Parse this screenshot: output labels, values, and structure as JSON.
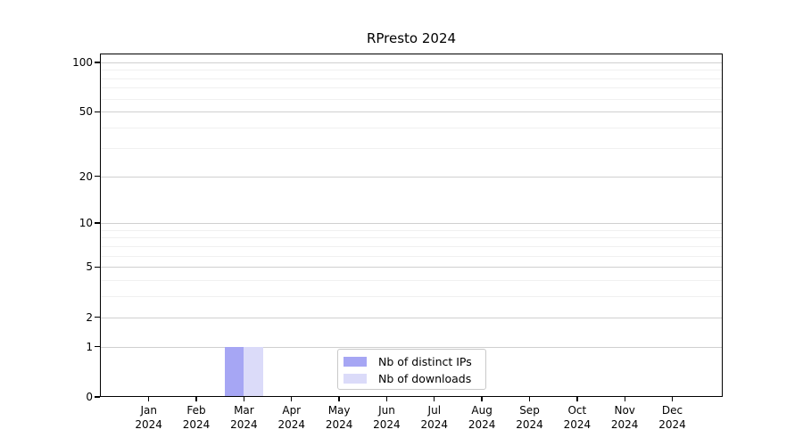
{
  "chart_data": {
    "type": "bar",
    "title": "RPresto 2024",
    "year": "2024",
    "categories": [
      "Jan",
      "Feb",
      "Mar",
      "Apr",
      "May",
      "Jun",
      "Jul",
      "Aug",
      "Sep",
      "Oct",
      "Nov",
      "Dec"
    ],
    "series": [
      {
        "name": "Nb of distinct IPs",
        "color": "#a6a6f4",
        "values": [
          0,
          0,
          1,
          0,
          0,
          0,
          0,
          0,
          0,
          0,
          0,
          0
        ]
      },
      {
        "name": "Nb of downloads",
        "color": "#dbdbf9",
        "values": [
          0,
          0,
          1,
          0,
          0,
          0,
          0,
          0,
          0,
          0,
          0,
          0
        ]
      }
    ],
    "xlabel": "",
    "ylabel": "",
    "y_axis": {
      "scale": "log1p",
      "ticks": [
        0,
        1,
        2,
        5,
        10,
        20,
        50,
        100
      ],
      "minor_ticks": [
        3,
        4,
        6,
        7,
        8,
        9,
        30,
        40,
        60,
        70,
        80,
        90
      ],
      "ylim": [
        0,
        113
      ]
    },
    "grid": true,
    "legend_position": "lower-center",
    "colors": {
      "major_grid": "#d0d0d0",
      "minor_grid": "#f0f0f0",
      "spine": "#000000",
      "background": "#ffffff"
    }
  }
}
